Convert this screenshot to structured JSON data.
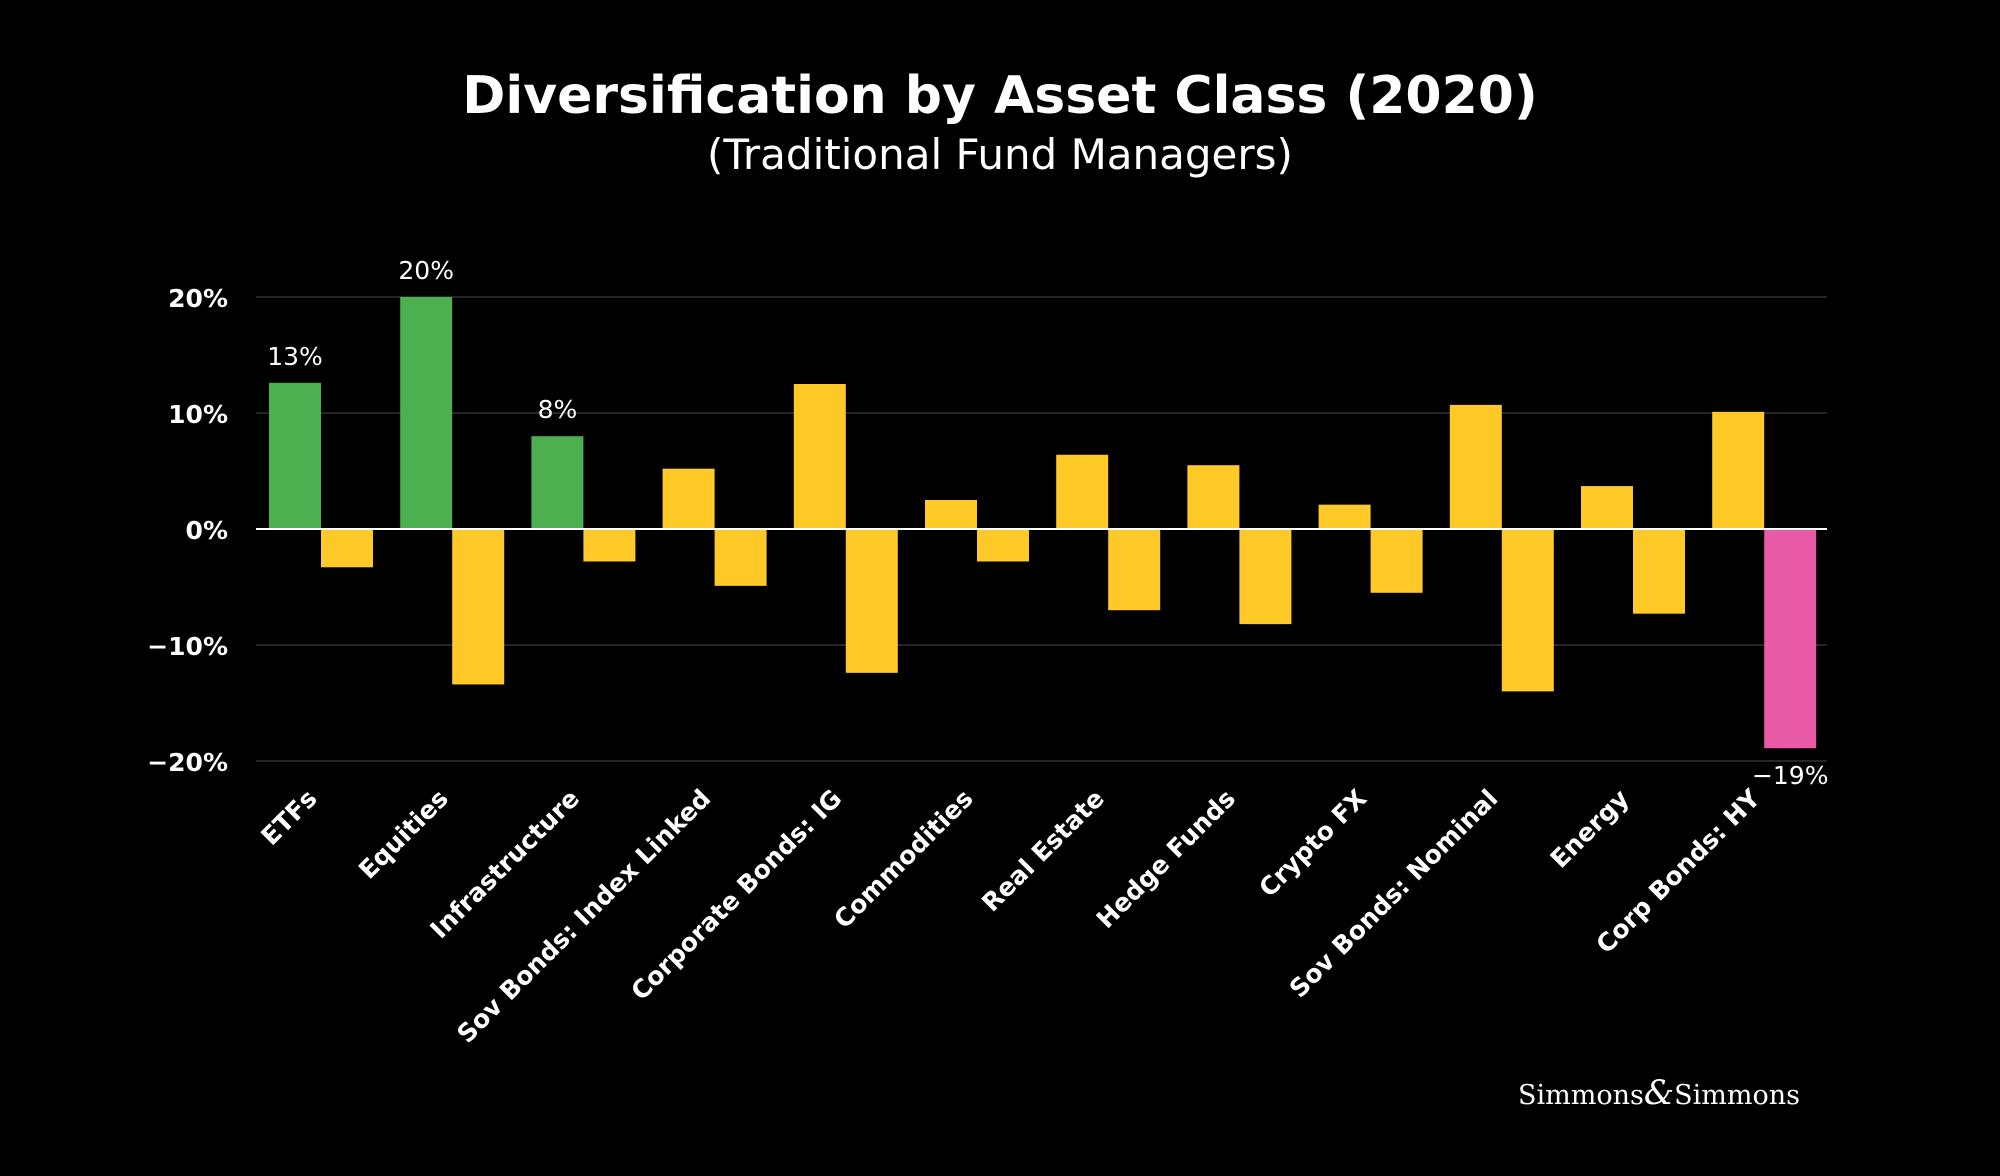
{
  "chart_data": {
    "type": "bar",
    "title": "Diversification by Asset Class (2020)",
    "subtitle": "(Traditional Fund Managers)",
    "xlabel": "",
    "ylabel": "",
    "ylim": [
      -20,
      20
    ],
    "yticks": [
      {
        "value": 20,
        "label": "20%"
      },
      {
        "value": 10,
        "label": "10%"
      },
      {
        "value": 0,
        "label": "0%"
      },
      {
        "value": -10,
        "label": "−10%"
      },
      {
        "value": -20,
        "label": "−20%"
      }
    ],
    "grid": true,
    "legend": "none",
    "categories": [
      "ETFs",
      "Equities",
      "Infrastructure",
      "Sov Bonds: Index Linked",
      "Corporate Bonds: IG",
      "Commodities",
      "Real Estate",
      "Hedge Funds",
      "Crypto FX",
      "Sov Bonds: Nominal",
      "Energy",
      "Corp Bonds: HY"
    ],
    "series": [
      {
        "values": [
          12.6,
          20,
          8,
          5.2,
          12.5,
          2.5,
          6.4,
          5.5,
          2.1,
          10.7,
          3.7,
          10.1
        ],
        "colors": [
          "#4caf50",
          "#4caf50",
          "#4caf50",
          "#ffca28",
          "#ffca28",
          "#ffca28",
          "#ffca28",
          "#ffca28",
          "#ffca28",
          "#ffca28",
          "#ffca28",
          "#ffca28"
        ]
      },
      {
        "values": [
          -3.3,
          -13.4,
          -2.8,
          -4.9,
          -12.4,
          -2.8,
          -7,
          -8.2,
          -5.5,
          -14,
          -7.3,
          -18.9
        ],
        "colors": [
          "#ffca28",
          "#ffca28",
          "#ffca28",
          "#ffca28",
          "#ffca28",
          "#ffca28",
          "#ffca28",
          "#ffca28",
          "#ffca28",
          "#ffca28",
          "#ffca28",
          "#e85aa6"
        ]
      }
    ],
    "data_labels": [
      {
        "category_index": 0,
        "series_index": 0,
        "text": "13%"
      },
      {
        "category_index": 1,
        "series_index": 0,
        "text": "20%"
      },
      {
        "category_index": 2,
        "series_index": 0,
        "text": "8%"
      },
      {
        "category_index": 11,
        "series_index": 1,
        "text": "−19%"
      }
    ]
  },
  "colors": {
    "background": "#000000",
    "text": "#ffffff",
    "grid": "#333333",
    "axis": "#ffffff",
    "green": "#4caf50",
    "yellow": "#ffca28",
    "pink": "#e85aa6"
  },
  "brand": {
    "part1": "Simmons",
    "amp": "&",
    "part2": "Simmons"
  }
}
